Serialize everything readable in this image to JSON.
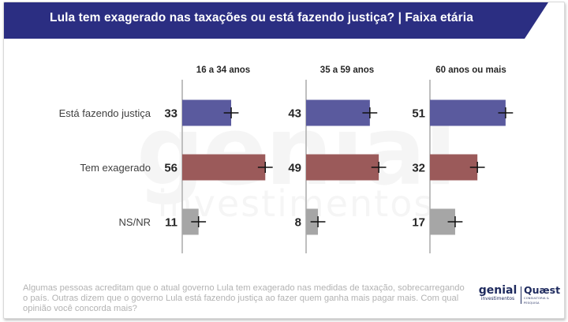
{
  "header": {
    "title": "Lula tem exagerado nas taxações ou está fazendo justiça? | Faixa etária",
    "bg_color": "#2b2e82"
  },
  "chart_data": {
    "type": "bar",
    "orientation": "horizontal",
    "title": "Lula tem exagerado nas taxações ou está fazendo justiça? | Faixa etária",
    "categories": [
      "Está fazendo justiça",
      "Tem exagerado",
      "NS/NR"
    ],
    "panels": [
      {
        "name": "16 a 34 anos",
        "values": [
          33,
          56,
          11
        ]
      },
      {
        "name": "35 a 59 anos",
        "values": [
          43,
          49,
          8
        ]
      },
      {
        "name": "60 anos ou mais",
        "values": [
          51,
          32,
          17
        ]
      }
    ],
    "error_margin": 5,
    "colors": [
      "#5a5a9e",
      "#9b5a5a",
      "#a6a6a6"
    ],
    "grid": false,
    "legend": "none"
  },
  "watermark": {
    "line1": "genial",
    "line2": "investimentos"
  },
  "footer": {
    "question": "Algumas pessoas acreditam que o atual governo Lula tem exagerado nas medidas de taxação, sobrecarregando o país. Outras dizem que o governo Lula está fazendo justiça ao fazer quem ganha mais pagar mais. Com qual opinião você concorda mais?"
  },
  "logos": {
    "genial": "genial",
    "genial_sub": "investimentos",
    "quaest": "Quæst",
    "quaest_sub": "CONSULTORIA & PESQUISA"
  }
}
